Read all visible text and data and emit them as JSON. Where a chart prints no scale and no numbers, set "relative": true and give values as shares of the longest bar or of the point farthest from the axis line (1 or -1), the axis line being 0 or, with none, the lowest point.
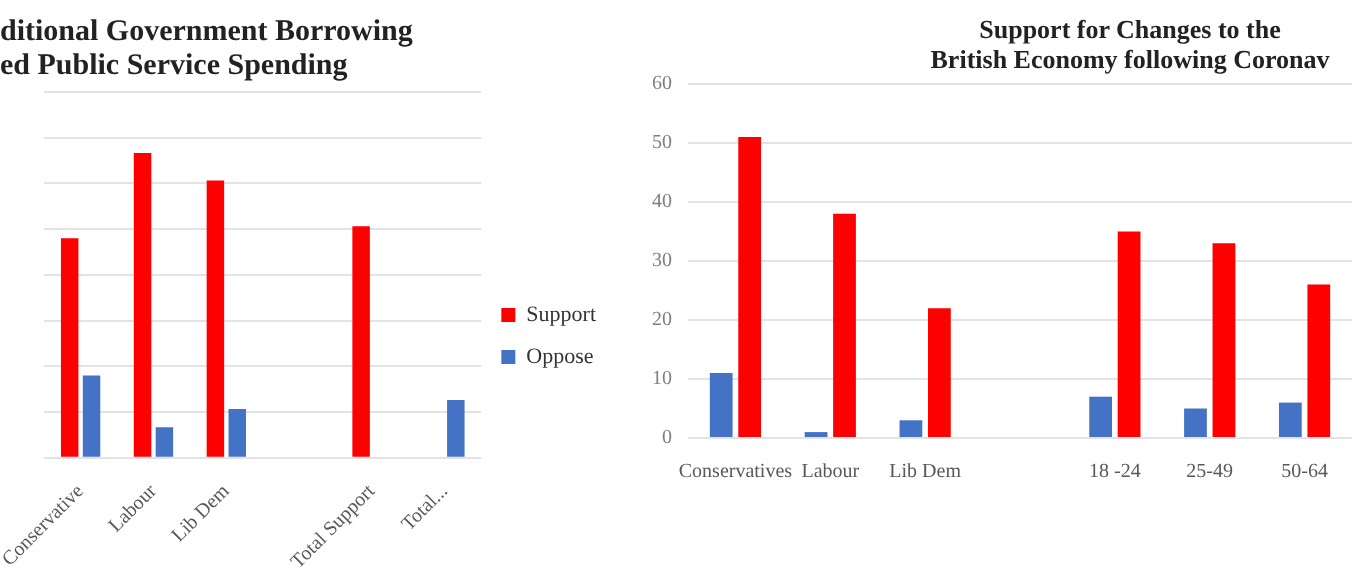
{
  "chart_data": [
    {
      "type": "bar",
      "title": "ditional Government Borrowing\ned Public Service Spending",
      "categories": [
        "Conservative",
        "Labour",
        "Lib Dem",
        null,
        "Total Support",
        "Total..."
      ],
      "series": [
        {
          "name": "Support",
          "color": "#ff0000",
          "values": [
            0.72,
            1,
            0.91,
            null,
            0.76,
            null
          ]
        },
        {
          "name": "Oppose",
          "color": "#4472c4",
          "values": [
            0.27,
            0.1,
            0.16,
            null,
            null,
            0.19
          ]
        }
      ],
      "relative": true,
      "grid": "y",
      "legend": "right"
    },
    {
      "type": "bar",
      "title": "Support for Changes to the\nBritish Economy following Coronav",
      "categories": [
        "Conservatives",
        "Labour",
        "Lib Dem",
        null,
        "18 -24",
        "25-49",
        "50-64"
      ],
      "series": [
        {
          "color": "#4472c4",
          "values": [
            11,
            1,
            3,
            null,
            7,
            5,
            6
          ]
        },
        {
          "color": "#ff0000",
          "values": [
            51,
            38,
            22,
            null,
            35,
            33,
            26
          ]
        }
      ],
      "ylim": [
        0,
        60
      ],
      "yticks": [
        0,
        10,
        20,
        30,
        40,
        50,
        60
      ],
      "grid": "y"
    }
  ]
}
